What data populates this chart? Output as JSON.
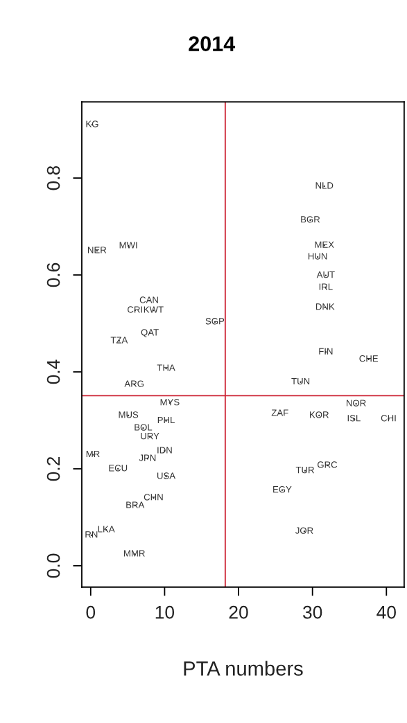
{
  "chart_data": {
    "type": "scatter",
    "title": "2014",
    "xlabel": "PTA numbers",
    "marker": "circle",
    "grid": false,
    "legend": false,
    "xlim": [
      -1.2,
      42.4
    ],
    "ylim": [
      -0.044,
      0.957
    ],
    "xticks": [
      0,
      10,
      20,
      30,
      40
    ],
    "yticks": [
      {
        "value": 0,
        "label": "0.0"
      },
      {
        "value": 0.2,
        "label": "0.2"
      },
      {
        "value": 0.4,
        "label": "0.4"
      },
      {
        "value": 0.6,
        "label": "0.6"
      },
      {
        "value": 0.8,
        "label": "0.8"
      }
    ],
    "ref_lines": [
      {
        "axis": "x",
        "value": 18.2,
        "label": null,
        "color": "#cc2233"
      },
      {
        "axis": "y",
        "value": 0.351,
        "label": null,
        "color": "#cc2233"
      }
    ],
    "series": [
      {
        "color": "#333333",
        "x": [
          0.2,
          0.85,
          5.1,
          7.9,
          6.0,
          8.5,
          16.8,
          8.0,
          3.85,
          10.2,
          5.9,
          10.7,
          5.1,
          10.2,
          7.1,
          8.0,
          10.0,
          7.7,
          0.3,
          3.7,
          10.2,
          8.5,
          6.0,
          2.1,
          0.1,
          5.9,
          31.6,
          29.7,
          31.6,
          30.7,
          31.8,
          31.8,
          31.7,
          31.8,
          37.6,
          28.4,
          35.9,
          25.6,
          30.9,
          35.6,
          40.3,
          32.0,
          29.0,
          25.9,
          28.9
        ],
        "values": [
          0.91,
          0.65,
          0.66,
          0.547,
          0.527,
          0.527,
          0.503,
          0.48,
          0.464,
          0.407,
          0.374,
          0.336,
          0.31,
          0.299,
          0.284,
          0.266,
          0.237,
          0.221,
          0.229,
          0.2,
          0.184,
          0.14,
          0.124,
          0.074,
          0.063,
          0.024,
          0.783,
          0.713,
          0.661,
          0.637,
          0.599,
          0.574,
          0.533,
          0.441,
          0.426,
          0.379,
          0.334,
          0.314,
          0.31,
          0.303,
          0.303,
          0.207,
          0.196,
          0.156,
          0.071
        ],
        "value_labels": [
          "KG",
          "NER",
          "MWI",
          "CAN",
          "CRI",
          "KWT",
          "SGP",
          "QAT",
          "TZA",
          "THA",
          "ARG",
          "MYS",
          "MUS",
          "PHL",
          "BOL",
          "URY",
          "IDN",
          "JPN",
          "MR",
          "ECU",
          "USA",
          "CHN",
          "BRA",
          "LKA",
          "RN",
          "MMR",
          "NLD",
          "BGR",
          "MEX",
          "HUN",
          "AUT",
          "IRL",
          "DNK",
          "FIN",
          "CHE",
          "TUN",
          "NOR",
          "ZAF",
          "KOR",
          "ISL",
          "CHI",
          "GRC",
          "TUR",
          "EGY",
          "JOR"
        ]
      }
    ]
  }
}
